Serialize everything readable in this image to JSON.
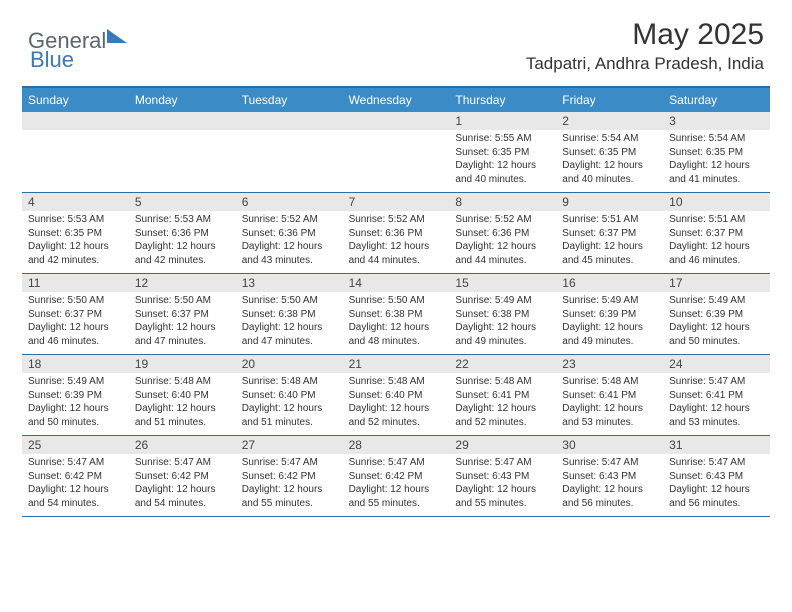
{
  "logo": {
    "general": "General",
    "blue": "Blue"
  },
  "title": "May 2025",
  "location": "Tadpatri, Andhra Pradesh, India",
  "colors": {
    "header_bg": "#3b8bc6",
    "border": "#2e6ca4",
    "daynum_bg": "#e8e8e8",
    "text": "#333333",
    "logo_gray": "#5a6670",
    "logo_blue": "#3a7ab8"
  },
  "weekdays": [
    "Sunday",
    "Monday",
    "Tuesday",
    "Wednesday",
    "Thursday",
    "Friday",
    "Saturday"
  ],
  "weeks": [
    [
      {
        "n": "",
        "sunrise": "",
        "sunset": "",
        "daylight": ""
      },
      {
        "n": "",
        "sunrise": "",
        "sunset": "",
        "daylight": ""
      },
      {
        "n": "",
        "sunrise": "",
        "sunset": "",
        "daylight": ""
      },
      {
        "n": "",
        "sunrise": "",
        "sunset": "",
        "daylight": ""
      },
      {
        "n": "1",
        "sunrise": "Sunrise: 5:55 AM",
        "sunset": "Sunset: 6:35 PM",
        "daylight": "Daylight: 12 hours and 40 minutes."
      },
      {
        "n": "2",
        "sunrise": "Sunrise: 5:54 AM",
        "sunset": "Sunset: 6:35 PM",
        "daylight": "Daylight: 12 hours and 40 minutes."
      },
      {
        "n": "3",
        "sunrise": "Sunrise: 5:54 AM",
        "sunset": "Sunset: 6:35 PM",
        "daylight": "Daylight: 12 hours and 41 minutes."
      }
    ],
    [
      {
        "n": "4",
        "sunrise": "Sunrise: 5:53 AM",
        "sunset": "Sunset: 6:35 PM",
        "daylight": "Daylight: 12 hours and 42 minutes."
      },
      {
        "n": "5",
        "sunrise": "Sunrise: 5:53 AM",
        "sunset": "Sunset: 6:36 PM",
        "daylight": "Daylight: 12 hours and 42 minutes."
      },
      {
        "n": "6",
        "sunrise": "Sunrise: 5:52 AM",
        "sunset": "Sunset: 6:36 PM",
        "daylight": "Daylight: 12 hours and 43 minutes."
      },
      {
        "n": "7",
        "sunrise": "Sunrise: 5:52 AM",
        "sunset": "Sunset: 6:36 PM",
        "daylight": "Daylight: 12 hours and 44 minutes."
      },
      {
        "n": "8",
        "sunrise": "Sunrise: 5:52 AM",
        "sunset": "Sunset: 6:36 PM",
        "daylight": "Daylight: 12 hours and 44 minutes."
      },
      {
        "n": "9",
        "sunrise": "Sunrise: 5:51 AM",
        "sunset": "Sunset: 6:37 PM",
        "daylight": "Daylight: 12 hours and 45 minutes."
      },
      {
        "n": "10",
        "sunrise": "Sunrise: 5:51 AM",
        "sunset": "Sunset: 6:37 PM",
        "daylight": "Daylight: 12 hours and 46 minutes."
      }
    ],
    [
      {
        "n": "11",
        "sunrise": "Sunrise: 5:50 AM",
        "sunset": "Sunset: 6:37 PM",
        "daylight": "Daylight: 12 hours and 46 minutes."
      },
      {
        "n": "12",
        "sunrise": "Sunrise: 5:50 AM",
        "sunset": "Sunset: 6:37 PM",
        "daylight": "Daylight: 12 hours and 47 minutes."
      },
      {
        "n": "13",
        "sunrise": "Sunrise: 5:50 AM",
        "sunset": "Sunset: 6:38 PM",
        "daylight": "Daylight: 12 hours and 47 minutes."
      },
      {
        "n": "14",
        "sunrise": "Sunrise: 5:50 AM",
        "sunset": "Sunset: 6:38 PM",
        "daylight": "Daylight: 12 hours and 48 minutes."
      },
      {
        "n": "15",
        "sunrise": "Sunrise: 5:49 AM",
        "sunset": "Sunset: 6:38 PM",
        "daylight": "Daylight: 12 hours and 49 minutes."
      },
      {
        "n": "16",
        "sunrise": "Sunrise: 5:49 AM",
        "sunset": "Sunset: 6:39 PM",
        "daylight": "Daylight: 12 hours and 49 minutes."
      },
      {
        "n": "17",
        "sunrise": "Sunrise: 5:49 AM",
        "sunset": "Sunset: 6:39 PM",
        "daylight": "Daylight: 12 hours and 50 minutes."
      }
    ],
    [
      {
        "n": "18",
        "sunrise": "Sunrise: 5:49 AM",
        "sunset": "Sunset: 6:39 PM",
        "daylight": "Daylight: 12 hours and 50 minutes."
      },
      {
        "n": "19",
        "sunrise": "Sunrise: 5:48 AM",
        "sunset": "Sunset: 6:40 PM",
        "daylight": "Daylight: 12 hours and 51 minutes."
      },
      {
        "n": "20",
        "sunrise": "Sunrise: 5:48 AM",
        "sunset": "Sunset: 6:40 PM",
        "daylight": "Daylight: 12 hours and 51 minutes."
      },
      {
        "n": "21",
        "sunrise": "Sunrise: 5:48 AM",
        "sunset": "Sunset: 6:40 PM",
        "daylight": "Daylight: 12 hours and 52 minutes."
      },
      {
        "n": "22",
        "sunrise": "Sunrise: 5:48 AM",
        "sunset": "Sunset: 6:41 PM",
        "daylight": "Daylight: 12 hours and 52 minutes."
      },
      {
        "n": "23",
        "sunrise": "Sunrise: 5:48 AM",
        "sunset": "Sunset: 6:41 PM",
        "daylight": "Daylight: 12 hours and 53 minutes."
      },
      {
        "n": "24",
        "sunrise": "Sunrise: 5:47 AM",
        "sunset": "Sunset: 6:41 PM",
        "daylight": "Daylight: 12 hours and 53 minutes."
      }
    ],
    [
      {
        "n": "25",
        "sunrise": "Sunrise: 5:47 AM",
        "sunset": "Sunset: 6:42 PM",
        "daylight": "Daylight: 12 hours and 54 minutes."
      },
      {
        "n": "26",
        "sunrise": "Sunrise: 5:47 AM",
        "sunset": "Sunset: 6:42 PM",
        "daylight": "Daylight: 12 hours and 54 minutes."
      },
      {
        "n": "27",
        "sunrise": "Sunrise: 5:47 AM",
        "sunset": "Sunset: 6:42 PM",
        "daylight": "Daylight: 12 hours and 55 minutes."
      },
      {
        "n": "28",
        "sunrise": "Sunrise: 5:47 AM",
        "sunset": "Sunset: 6:42 PM",
        "daylight": "Daylight: 12 hours and 55 minutes."
      },
      {
        "n": "29",
        "sunrise": "Sunrise: 5:47 AM",
        "sunset": "Sunset: 6:43 PM",
        "daylight": "Daylight: 12 hours and 55 minutes."
      },
      {
        "n": "30",
        "sunrise": "Sunrise: 5:47 AM",
        "sunset": "Sunset: 6:43 PM",
        "daylight": "Daylight: 12 hours and 56 minutes."
      },
      {
        "n": "31",
        "sunrise": "Sunrise: 5:47 AM",
        "sunset": "Sunset: 6:43 PM",
        "daylight": "Daylight: 12 hours and 56 minutes."
      }
    ]
  ]
}
